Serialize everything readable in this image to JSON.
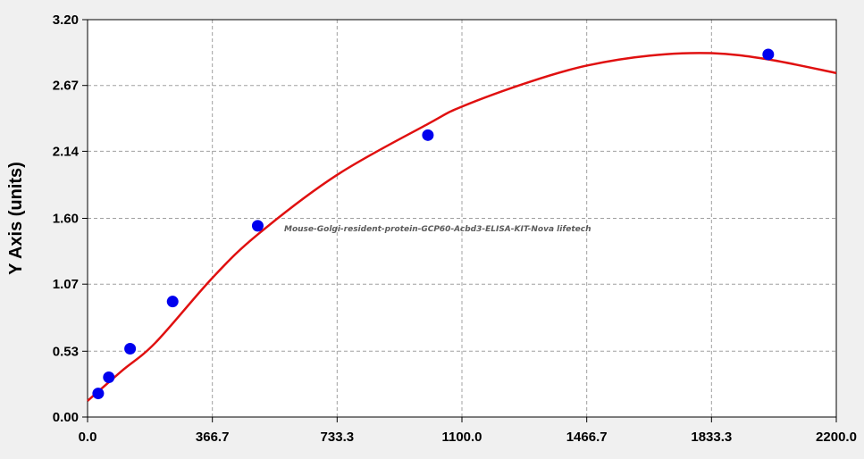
{
  "chart_data": {
    "type": "scatter",
    "ylabel": "Y Axis (units)",
    "xlabel": "",
    "annotation": "Mouse-Golgi-resident-protein-GCP60-Acbd3-ELISA-KIT-Nova lifetech",
    "xlim": [
      0,
      2200
    ],
    "ylim": [
      0,
      3.2
    ],
    "x_ticks": [
      "0.0",
      "366.7",
      "733.3",
      "1100.0",
      "1466.7",
      "1833.3",
      "2200.0"
    ],
    "y_ticks": [
      "0.00",
      "0.53",
      "1.07",
      "1.60",
      "2.14",
      "2.67",
      "3.20"
    ],
    "grid": true,
    "colors": {
      "points": "#0000ee",
      "curve": "#e01010",
      "plot_bg": "#ffffff",
      "grid": "#a0a0a0"
    },
    "series": [
      {
        "values": [
          {
            "x": 31.25,
            "y": 0.19
          },
          {
            "x": 62.5,
            "y": 0.32
          },
          {
            "x": 125,
            "y": 0.55
          },
          {
            "x": 250,
            "y": 0.93
          },
          {
            "x": 500,
            "y": 1.54
          },
          {
            "x": 1000,
            "y": 2.27
          },
          {
            "x": 2000,
            "y": 2.92
          }
        ]
      }
    ],
    "fit_curve": [
      {
        "x": 0,
        "y": 0.13
      },
      {
        "x": 100,
        "y": 0.37
      },
      {
        "x": 200,
        "y": 0.6
      },
      {
        "x": 366.7,
        "y": 1.12
      },
      {
        "x": 500,
        "y": 1.47
      },
      {
        "x": 733.3,
        "y": 1.95
      },
      {
        "x": 1000,
        "y": 2.36
      },
      {
        "x": 1100,
        "y": 2.5
      },
      {
        "x": 1300,
        "y": 2.7
      },
      {
        "x": 1466.7,
        "y": 2.83
      },
      {
        "x": 1650,
        "y": 2.91
      },
      {
        "x": 1833.3,
        "y": 2.93
      },
      {
        "x": 2000,
        "y": 2.88
      },
      {
        "x": 2200,
        "y": 2.77
      }
    ]
  }
}
